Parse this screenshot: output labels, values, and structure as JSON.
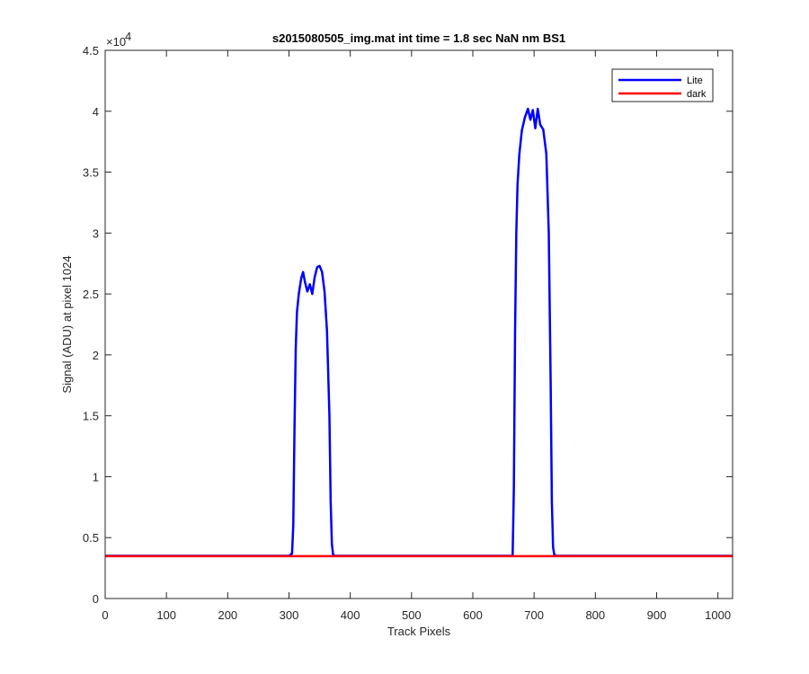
{
  "chart_data": {
    "type": "line",
    "title": "s2015080505_img.mat int time = 1.8 sec  NaN nm BS1",
    "xlabel": "Track Pixels",
    "ylabel": "Signal (ADU) at pixel 1024",
    "xlim": [
      0,
      1024
    ],
    "ylim": [
      0,
      45000
    ],
    "y_exponent_label": "×10",
    "y_exponent_power": "4",
    "x_ticks": [
      0,
      100,
      200,
      300,
      400,
      500,
      600,
      700,
      800,
      900,
      1000
    ],
    "x_tick_labels": [
      "0",
      "100",
      "200",
      "300",
      "400",
      "500",
      "600",
      "700",
      "800",
      "900",
      "1000"
    ],
    "y_ticks": [
      0,
      5000,
      10000,
      15000,
      20000,
      25000,
      30000,
      35000,
      40000,
      45000
    ],
    "y_tick_labels": [
      "0",
      "0.5",
      "1",
      "1.5",
      "2",
      "2.5",
      "3",
      "3.5",
      "4",
      "4.5"
    ],
    "grid": false,
    "legend_position": "top-right",
    "series": [
      {
        "name": "Lite",
        "color": "#0000ff",
        "x": [
          0,
          300,
          305,
          307,
          309,
          311,
          313,
          316,
          320,
          323,
          326,
          330,
          334,
          338,
          342,
          346,
          350,
          354,
          358,
          362,
          366,
          368,
          370,
          372,
          375,
          380,
          600,
          665,
          667,
          669,
          671,
          673,
          676,
          680,
          685,
          690,
          694,
          698,
          702,
          706,
          710,
          715,
          720,
          724,
          727,
          729,
          731,
          733,
          736,
          740,
          1024
        ],
        "y": [
          3500,
          3500,
          3700,
          6000,
          14000,
          20500,
          23500,
          25000,
          26300,
          26800,
          26000,
          25200,
          25800,
          25000,
          26400,
          27200,
          27300,
          26800,
          25200,
          22000,
          15000,
          8000,
          4500,
          3600,
          3500,
          3500,
          3500,
          3500,
          9000,
          22000,
          30000,
          34000,
          36500,
          38400,
          39500,
          40200,
          39300,
          40100,
          38600,
          40200,
          38900,
          38500,
          36500,
          30000,
          18000,
          8000,
          4200,
          3600,
          3500,
          3500,
          3500
        ]
      },
      {
        "name": "dark",
        "color": "#ff0000",
        "x": [
          0,
          1024
        ],
        "y": [
          3480,
          3480
        ]
      }
    ]
  }
}
